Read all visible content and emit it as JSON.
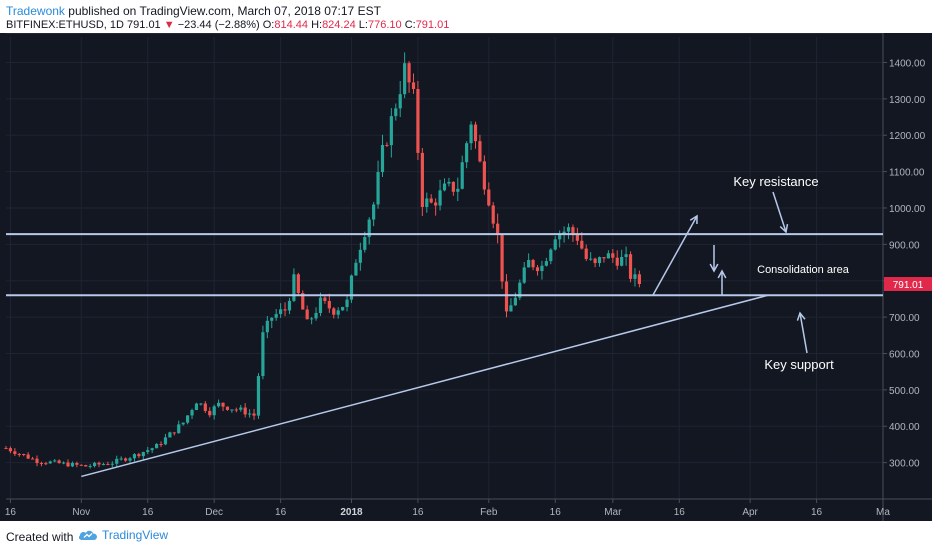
{
  "header": {
    "author": "Tradewonk",
    "published_text": "published on TradingView.com, March 07, 2018 07:17 EST",
    "symbol": "BITFINEX:ETHUSD, 1D",
    "last": "791.01",
    "change_arrow": "▼",
    "change": "−23.44 (−2.88%)",
    "open_label": "O:",
    "open": "814.44",
    "high_label": "H:",
    "high": "824.24",
    "low_label": "L:",
    "low": "776.10",
    "close_label": "C:",
    "close": "791.01"
  },
  "footer": {
    "created_with": "Created with",
    "brand": "TradingView",
    "logo_icon": "tradingview-cloud-icon"
  },
  "colors": {
    "background": "#131722",
    "up": "#26a69a",
    "down": "#ef5350",
    "drawing": "#b7c9ea",
    "axis_text": "#b2b5be",
    "price_tag": "#e0294a"
  },
  "chart_data": {
    "type": "candlestick",
    "symbol": "BITFINEX:ETHUSD",
    "interval": "1D",
    "ylim": [
      200,
      1470
    ],
    "y_ticks": [
      300,
      400,
      500,
      600,
      700,
      800,
      900,
      1000,
      1100,
      1200,
      1300,
      1400
    ],
    "y_tick_labels": [
      "300.00",
      "400.00",
      "500.00",
      "600.00",
      "700.00",
      "800.00",
      "900.00",
      "1000.00",
      "1100.00",
      "1200.00",
      "1300.00",
      "1400.00"
    ],
    "x_range": [
      "2017-10-15",
      "2018-05-01"
    ],
    "x_ticks": [
      {
        "date": "2017-10-16",
        "label": "16"
      },
      {
        "date": "2017-11-01",
        "label": "Nov"
      },
      {
        "date": "2017-11-16",
        "label": "16"
      },
      {
        "date": "2017-12-01",
        "label": "Dec"
      },
      {
        "date": "2017-12-16",
        "label": "16"
      },
      {
        "date": "2018-01-01",
        "label": "2018"
      },
      {
        "date": "2018-01-16",
        "label": "16"
      },
      {
        "date": "2018-02-01",
        "label": "Feb"
      },
      {
        "date": "2018-02-16",
        "label": "16"
      },
      {
        "date": "2018-03-01",
        "label": "Mar"
      },
      {
        "date": "2018-03-16",
        "label": "16"
      },
      {
        "date": "2018-04-01",
        "label": "Apr"
      },
      {
        "date": "2018-04-16",
        "label": "16"
      },
      {
        "date": "2018-05-01",
        "label": "Ma"
      }
    ],
    "last_price": 791.01,
    "last_price_label": "791.01",
    "anchors": [
      {
        "date": "2017-10-15",
        "close": 340
      },
      {
        "date": "2017-10-22",
        "close": 305
      },
      {
        "date": "2017-10-27",
        "close": 298
      },
      {
        "date": "2017-11-02",
        "close": 290
      },
      {
        "date": "2017-11-08",
        "close": 300
      },
      {
        "date": "2017-11-13",
        "close": 320
      },
      {
        "date": "2017-11-18",
        "close": 345
      },
      {
        "date": "2017-11-24",
        "close": 410
      },
      {
        "date": "2017-11-27",
        "close": 470
      },
      {
        "date": "2017-11-30",
        "close": 440
      },
      {
        "date": "2017-12-02",
        "close": 460
      },
      {
        "date": "2017-12-05",
        "close": 450
      },
      {
        "date": "2017-12-08",
        "close": 440
      },
      {
        "date": "2017-12-10",
        "close": 430
      },
      {
        "date": "2017-12-12",
        "close": 650
      },
      {
        "date": "2017-12-14",
        "close": 700
      },
      {
        "date": "2017-12-17",
        "close": 720
      },
      {
        "date": "2017-12-19",
        "close": 800
      },
      {
        "date": "2017-12-22",
        "close": 680
      },
      {
        "date": "2017-12-25",
        "close": 740
      },
      {
        "date": "2017-12-28",
        "close": 720
      },
      {
        "date": "2017-12-31",
        "close": 740
      },
      {
        "date": "2018-01-02",
        "close": 860
      },
      {
        "date": "2018-01-04",
        "close": 940
      },
      {
        "date": "2018-01-06",
        "close": 1010
      },
      {
        "date": "2018-01-08",
        "close": 1150
      },
      {
        "date": "2018-01-10",
        "close": 1240
      },
      {
        "date": "2018-01-13",
        "close": 1380
      },
      {
        "date": "2018-01-15",
        "close": 1300
      },
      {
        "date": "2018-01-17",
        "close": 1020
      },
      {
        "date": "2018-01-19",
        "close": 1010
      },
      {
        "date": "2018-01-22",
        "close": 1050
      },
      {
        "date": "2018-01-25",
        "close": 1060
      },
      {
        "date": "2018-01-28",
        "close": 1240
      },
      {
        "date": "2018-01-30",
        "close": 1120
      },
      {
        "date": "2018-02-01",
        "close": 1030
      },
      {
        "date": "2018-02-03",
        "close": 920
      },
      {
        "date": "2018-02-05",
        "close": 700
      },
      {
        "date": "2018-02-07",
        "close": 760
      },
      {
        "date": "2018-02-10",
        "close": 850
      },
      {
        "date": "2018-02-13",
        "close": 840
      },
      {
        "date": "2018-02-16",
        "close": 930
      },
      {
        "date": "2018-02-19",
        "close": 940
      },
      {
        "date": "2018-02-21",
        "close": 920
      },
      {
        "date": "2018-02-23",
        "close": 860
      },
      {
        "date": "2018-02-25",
        "close": 840
      },
      {
        "date": "2018-02-27",
        "close": 870
      },
      {
        "date": "2018-03-02",
        "close": 860
      },
      {
        "date": "2018-03-04",
        "close": 855
      },
      {
        "date": "2018-03-05",
        "close": 815
      },
      {
        "date": "2018-03-07",
        "close": 791
      }
    ],
    "drawings": {
      "resistance": {
        "price": 928,
        "label": "Key resistance"
      },
      "support": {
        "price": 760,
        "label": "Key support"
      },
      "trendline": {
        "start": {
          "date": "2017-11-01",
          "price": 262
        },
        "end": {
          "date": "2018-04-05",
          "price": 760
        }
      },
      "consolidation_label": "Consolidation area"
    }
  }
}
